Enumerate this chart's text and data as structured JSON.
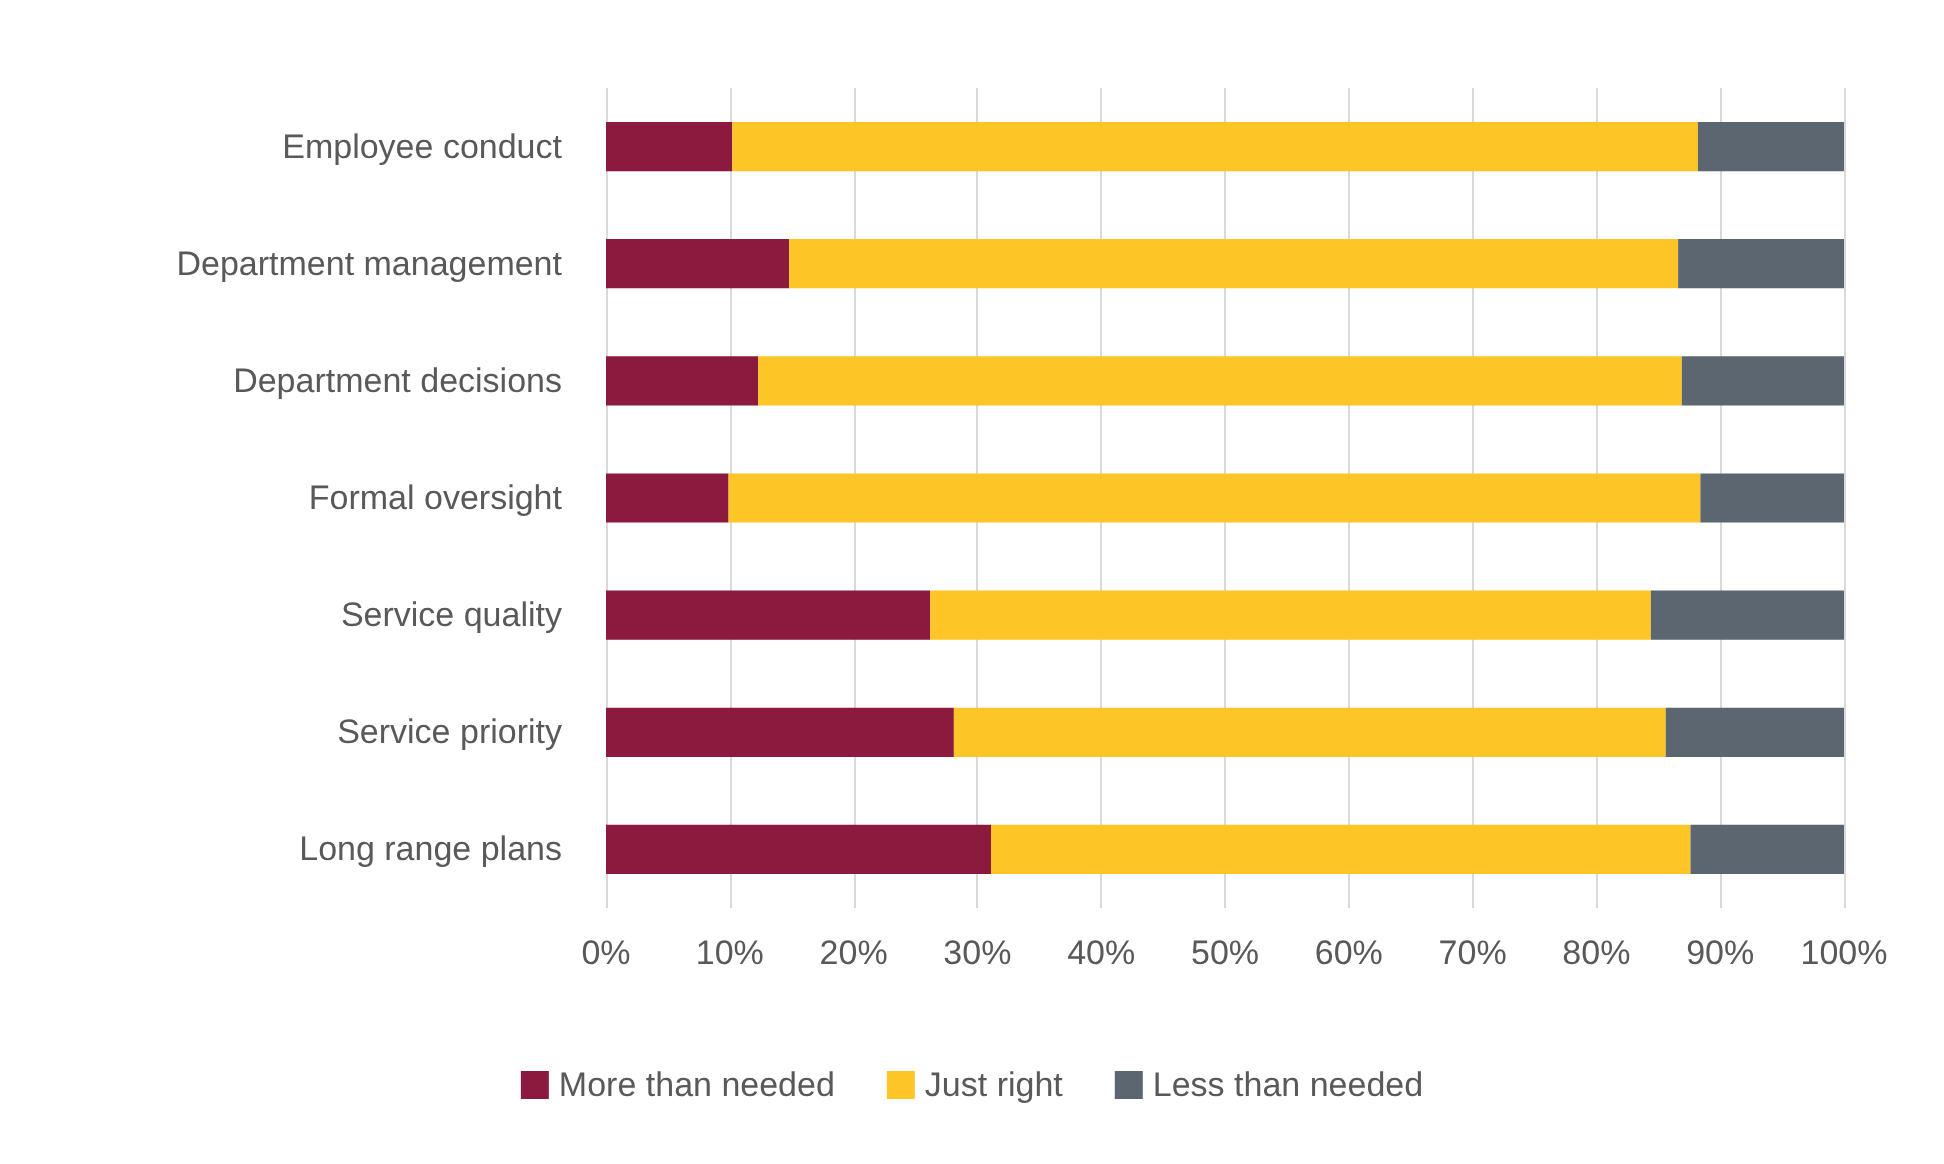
{
  "chart_data": {
    "type": "bar",
    "orientation": "horizontal",
    "stacked": true,
    "categories": [
      "Employee conduct",
      "Department management",
      "Department decisions",
      "Formal oversight",
      "Service quality",
      "Service priority",
      "Long range plans"
    ],
    "series": [
      {
        "name": "More than needed",
        "color": "#8b1a3e",
        "values": [
          10.2,
          14.8,
          12.3,
          9.9,
          26.2,
          28.1,
          31.1
        ]
      },
      {
        "name": "Just right",
        "color": "#fdc526",
        "values": [
          78,
          71.8,
          74.6,
          78.5,
          58.2,
          57.5,
          56.5
        ]
      },
      {
        "name": "Less than needed",
        "color": "#5b6670",
        "values": [
          11.8,
          13.4,
          13.1,
          11.6,
          15.6,
          14.4,
          12.4
        ]
      }
    ],
    "xlim": [
      0,
      100
    ],
    "xticks": [
      {
        "value": 0,
        "label": "0%"
      },
      {
        "value": 10,
        "label": "10%"
      },
      {
        "value": 20,
        "label": "20%"
      },
      {
        "value": 30,
        "label": "30%"
      },
      {
        "value": 40,
        "label": "40%"
      },
      {
        "value": 50,
        "label": "50%"
      },
      {
        "value": 60,
        "label": "60%"
      },
      {
        "value": 70,
        "label": "70%"
      },
      {
        "value": 80,
        "label": "80%"
      },
      {
        "value": 90,
        "label": "90%"
      },
      {
        "value": 100,
        "label": "100%"
      }
    ],
    "grid": "x",
    "legend": "bottom"
  }
}
